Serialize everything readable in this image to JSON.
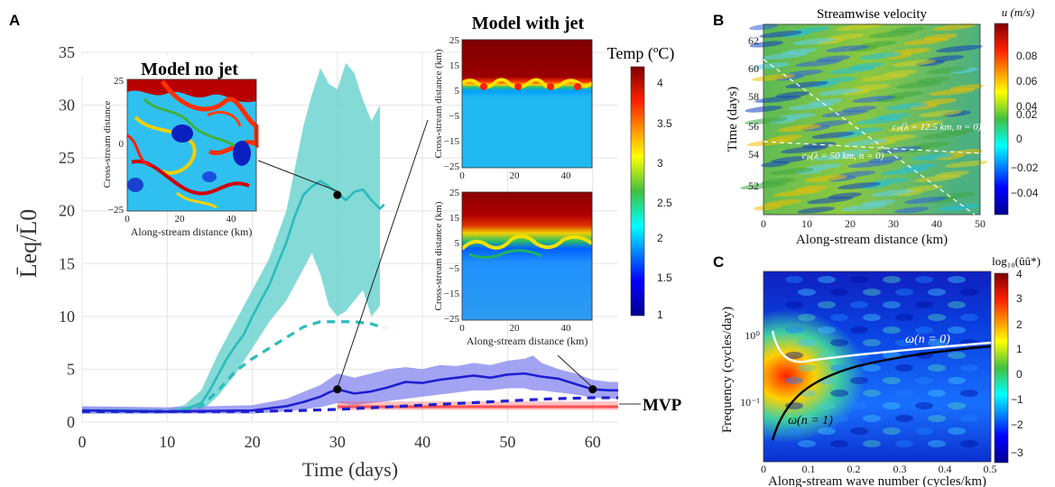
{
  "panels": {
    "a": "A",
    "b": "B",
    "c": "C"
  },
  "main": {
    "y_label": "L̄eq/L̄0",
    "x_label": "Time (days)",
    "x_ticks": [
      "0",
      "10",
      "20",
      "30",
      "40",
      "50",
      "60"
    ],
    "y_ticks": [
      "0",
      "5",
      "10",
      "15",
      "20",
      "25",
      "30",
      "35"
    ],
    "mvp_label": "MVP",
    "colors": {
      "no_jet": "#2abcbc",
      "no_jet_band": "#6fd3d0",
      "jet": "#1f1fcf",
      "jet_band": "#8c8cf0",
      "mvp": "#ff5050"
    }
  },
  "chart_data": [
    {
      "type": "line",
      "title": "",
      "xlabel": "Time (days)",
      "ylabel": "L̄eq/L̄0",
      "xlim": [
        0,
        63
      ],
      "ylim": [
        0,
        35
      ],
      "grid": true,
      "series": [
        {
          "style": "solid-teal",
          "x": [
            0,
            5,
            10,
            12,
            14,
            15,
            16,
            17,
            18,
            19,
            20,
            21,
            22,
            23,
            24,
            25,
            26,
            27,
            28,
            29,
            30,
            31,
            32,
            33,
            34,
            35,
            35.5
          ],
          "y": [
            1.1,
            1.1,
            1.0,
            1.2,
            1.8,
            3.0,
            4.5,
            6.0,
            7.2,
            8.3,
            10.0,
            11.5,
            13.0,
            15.0,
            17.0,
            19.5,
            21.5,
            22.3,
            22.8,
            22.3,
            21.7,
            21.0,
            21.8,
            22.0,
            21.0,
            20.2,
            20.6
          ]
        },
        {
          "style": "band-teal",
          "x": [
            0,
            10,
            12,
            14,
            16,
            18,
            20,
            22,
            24,
            25,
            26,
            27,
            28,
            29,
            30,
            31,
            32,
            33,
            34,
            35
          ],
          "upper": [
            1.4,
            1.3,
            1.6,
            3.0,
            6.5,
            9.5,
            12.5,
            15.5,
            20.0,
            24.0,
            28.0,
            31.0,
            33.5,
            32.0,
            31.5,
            34.0,
            33.0,
            30.5,
            28.5,
            30.0
          ],
          "lower": [
            0.8,
            0.8,
            0.9,
            1.0,
            2.5,
            4.5,
            7.0,
            9.5,
            11.5,
            13.0,
            14.5,
            16.0,
            14.0,
            11.0,
            10.0,
            10.5,
            11.5,
            12.5,
            10.0,
            11.0
          ]
        },
        {
          "style": "dashed-teal",
          "x": [
            0,
            12,
            14,
            16,
            18,
            20,
            22,
            24,
            26,
            28,
            30,
            32,
            34,
            35.5
          ],
          "y": [
            1.0,
            1.0,
            1.5,
            3.0,
            4.8,
            6.0,
            7.0,
            8.0,
            9.0,
            9.5,
            9.5,
            9.5,
            9.3,
            8.9
          ]
        },
        {
          "style": "solid-blue",
          "x": [
            0,
            10,
            20,
            22,
            24,
            26,
            28,
            29,
            30,
            32,
            34,
            36,
            38,
            40,
            42,
            44,
            46,
            48,
            50,
            52,
            54,
            56,
            58,
            60,
            62,
            63
          ],
          "y": [
            1.1,
            1.0,
            1.1,
            1.3,
            1.5,
            1.9,
            2.4,
            2.8,
            3.1,
            2.7,
            2.9,
            3.3,
            3.8,
            3.7,
            4.0,
            4.2,
            4.4,
            4.2,
            4.5,
            4.6,
            4.3,
            4.1,
            3.6,
            3.1,
            3.0,
            3.0
          ]
        },
        {
          "style": "band-blue",
          "x": [
            0,
            10,
            20,
            24,
            28,
            30,
            32,
            34,
            36,
            38,
            40,
            42,
            44,
            46,
            48,
            50,
            52,
            53,
            54,
            56,
            58,
            60,
            62,
            63
          ],
          "upper": [
            1.5,
            1.4,
            1.6,
            2.2,
            3.5,
            4.6,
            4.2,
            4.6,
            5.0,
            5.2,
            5.0,
            5.4,
            5.3,
            5.6,
            5.4,
            5.8,
            6.0,
            6.3,
            5.6,
            5.0,
            4.6,
            4.0,
            3.8,
            3.8
          ],
          "lower": [
            0.8,
            0.8,
            0.8,
            1.0,
            1.4,
            1.8,
            1.6,
            1.8,
            2.0,
            2.2,
            2.4,
            2.6,
            2.8,
            3.0,
            3.0,
            3.2,
            3.2,
            3.0,
            3.0,
            2.8,
            2.6,
            2.3,
            2.2,
            2.2
          ]
        },
        {
          "style": "dashed-blue",
          "x": [
            0,
            10,
            20,
            26,
            30,
            35,
            40,
            45,
            50,
            55,
            60,
            63
          ],
          "y": [
            1.0,
            1.0,
            1.0,
            1.1,
            1.2,
            1.4,
            1.6,
            1.8,
            2.0,
            2.2,
            2.3,
            2.3
          ]
        },
        {
          "style": "mvp-band",
          "x": [
            30,
            63
          ],
          "lower": 1.15,
          "upper": 1.95,
          "line": 1.45
        }
      ],
      "markers": [
        {
          "x": 30,
          "y": 21.5
        },
        {
          "x": 30,
          "y": 3.1
        },
        {
          "x": 60,
          "y": 3.1
        }
      ]
    },
    {
      "type": "heatmap",
      "title": "Streamwise velocity",
      "xlabel": "Along-stream distance (km)",
      "ylabel": "Time (days)",
      "xlim": [
        0,
        50
      ],
      "ylim": [
        50.5,
        63
      ],
      "colorbar_label": "u (m/s)",
      "colorbar_ticks": [
        "0.08",
        "0.06",
        "0.04",
        "0.02",
        "0",
        "−0.02",
        "−0.04"
      ],
      "annotations": [
        "c_p(λ = 12.5 km, n = 0)",
        "c_p(λ = 50 km, n = 0)"
      ]
    },
    {
      "type": "heatmap",
      "title": "",
      "xlabel": "Along-stream wave number (cycles/km)",
      "ylabel": "Frequency (cycles/day)",
      "xlim": [
        0,
        0.5
      ],
      "y_scale": "log",
      "colorbar_label": "log10(ûû*)",
      "colorbar_ticks": [
        "4",
        "3",
        "2",
        "1",
        "0",
        "−1",
        "−2",
        "−3"
      ],
      "annotations": [
        "ω(n = 0)",
        "ω(n = 1)"
      ]
    }
  ],
  "insets": {
    "no_jet": {
      "title": "Model no jet",
      "xlabel": "Along-stream distance (km)",
      "ylabel": "Cross-stream distance",
      "x_ticks": [
        "0",
        "20",
        "40"
      ],
      "y_ticks": [
        "25",
        "0",
        "−25"
      ]
    },
    "jet_title": "Model with jet",
    "jet_top": {
      "ylabel": "Cross-stream distance (km)",
      "x_ticks": [
        "0",
        "20",
        "40"
      ],
      "y_ticks": [
        "25",
        "15",
        "5",
        "−5",
        "−15",
        "−25"
      ]
    },
    "jet_bottom": {
      "ylabel": "Cross-stream distance (km)",
      "xlabel": "Along-stream distance (km)",
      "x_ticks": [
        "0",
        "20",
        "40"
      ],
      "y_ticks": [
        "25",
        "15",
        "5",
        "−5",
        "−15",
        "−25"
      ]
    },
    "temp_colorbar": {
      "label": "Temp (ºC)",
      "ticks": [
        "4",
        "3.5",
        "3",
        "2.5",
        "2",
        "1.5",
        "1"
      ]
    }
  },
  "panel_b": {
    "title": "Streamwise velocity",
    "cb_label": "u (m/s)",
    "x_ticks": [
      "0",
      "10",
      "20",
      "30",
      "40",
      "50"
    ],
    "y_ticks": [
      "62",
      "60",
      "58",
      "56",
      "54",
      "52"
    ],
    "x_label": "Along-stream distance (km)",
    "y_label": "Time (days)",
    "ann1": "cₚ(λ = 12.5 km, n = 0)",
    "ann2": "cₚ(λ = 50 km, n = 0)",
    "cb_ticks": [
      "0.08",
      "0.06",
      "0.04",
      "0.02",
      "0",
      "−0.02",
      "−0.04"
    ]
  },
  "panel_c": {
    "cb_label": "log₁₀(ûû*)",
    "x_ticks": [
      "0",
      "0.1",
      "0.2",
      "0.3",
      "0.4",
      "0.5"
    ],
    "y_ticks": [
      "10⁰",
      "10⁻¹"
    ],
    "x_label": "Along-stream wave number (cycles/km)",
    "y_label": "Frequency (cycles/day)",
    "ann1": "ω(n = 0)",
    "ann2": "ω(n = 1)",
    "cb_ticks": [
      "4",
      "3",
      "2",
      "1",
      "0",
      "−1",
      "−2",
      "−3"
    ]
  }
}
